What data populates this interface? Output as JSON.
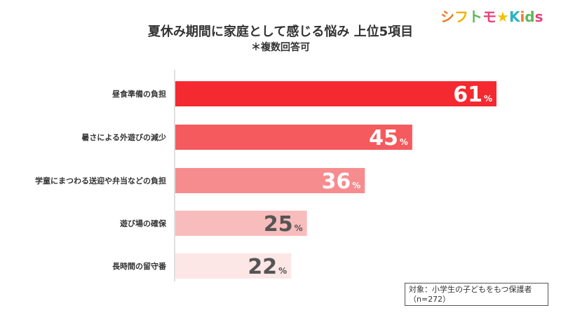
{
  "logo": {
    "text_parts": [
      {
        "text": "シ",
        "color": "#f07a2a"
      },
      {
        "text": "フ",
        "color": "#f0b300"
      },
      {
        "text": "ト",
        "color": "#5cb85c"
      },
      {
        "text": "モ",
        "color": "#e8417a"
      },
      {
        "text": "★",
        "color": "#f2c200"
      },
      {
        "text": "K",
        "color": "#2bb3c0"
      },
      {
        "text": "i",
        "color": "#f07a2a"
      },
      {
        "text": "d",
        "color": "#5cb85c"
      },
      {
        "text": "s",
        "color": "#e8417a"
      }
    ]
  },
  "note": {
    "line1": "対象：小学生の子どもをもつ保護者",
    "line2": "（n=272）"
  },
  "chart_data": {
    "type": "bar",
    "orientation": "horizontal",
    "title": "夏休み期間に家庭として感じる悩み 上位5項目",
    "subtitle": "＊複数回答可",
    "categories": [
      "昼食準備の負担",
      "暑さによる外遊びの減少",
      "学童にまつわる送迎や弁当などの負担",
      "遊び場の確保",
      "長時間の留守番"
    ],
    "values": [
      61,
      45,
      36,
      25,
      22
    ],
    "value_suffix": "%",
    "bar_colors": [
      "#f42a30",
      "#f55a5e",
      "#f78c8e",
      "#f9bcbd",
      "#fce6e6"
    ],
    "label_colors": [
      "#ffffff",
      "#ffffff",
      "#ffffff",
      "#555555",
      "#555555"
    ],
    "xlim": [
      0,
      61
    ],
    "grid": false,
    "legend": "none"
  }
}
